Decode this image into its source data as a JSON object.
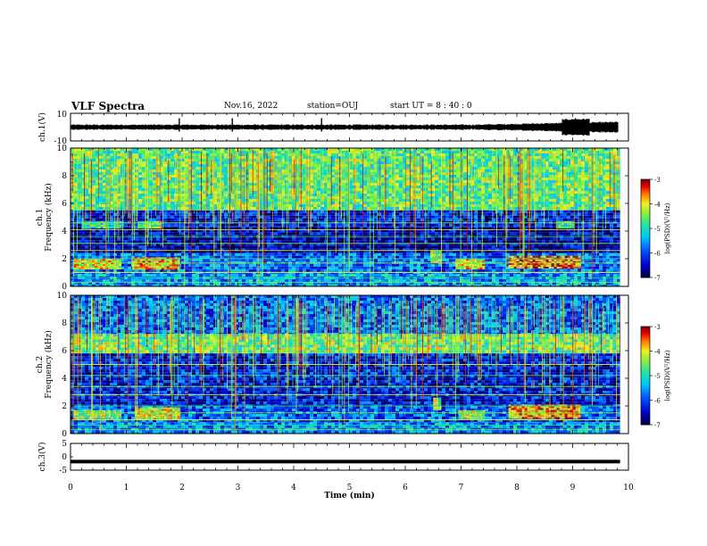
{
  "header": {
    "title": "VLF Spectra",
    "date": "Nov.16, 2022",
    "station": "station=OUJ",
    "start": "start  UT =  8 : 40 : 0"
  },
  "chart_data": [
    {
      "type": "line",
      "ylabel": "ch.1(V)",
      "ylim": [
        -10,
        10
      ],
      "y_ticks": [
        "10",
        "-10"
      ],
      "xlim": [
        0,
        10
      ],
      "description_values": {
        "baseline": 0,
        "spikes_x": [
          1.95,
          2.9,
          4.5,
          9.05
        ]
      }
    },
    {
      "type": "heatmap",
      "ylabel": "Frequency (kHz)",
      "ylabel_prefix": "ch.1",
      "ylim": [
        0,
        10
      ],
      "y_ticks": [
        "0",
        "2",
        "4",
        "6",
        "8",
        "10"
      ],
      "xlim": [
        0,
        10
      ],
      "colorbar": {
        "label": "log(PSD)(V²/Hz)",
        "ticks": [
          "-3",
          "-4",
          "-5",
          "-6",
          "-7"
        ],
        "range": [
          -7,
          -3
        ]
      },
      "bands": [
        {
          "x0": 0,
          "x1": 9.85,
          "f0": 5.5,
          "f1": 10,
          "level": -4.6
        },
        {
          "x0": 0,
          "x1": 9.85,
          "f0": 4.3,
          "f1": 5.5,
          "level": -6.3
        },
        {
          "x0": 0,
          "x1": 9.85,
          "f0": 2.4,
          "f1": 4.3,
          "level": -6.6
        },
        {
          "x0": 0,
          "x1": 9.85,
          "f0": 0.9,
          "f1": 2.4,
          "level": -5.8
        },
        {
          "x0": 0,
          "x1": 9.85,
          "f0": 0,
          "f1": 0.9,
          "level": -5.5
        }
      ],
      "emissions": [
        {
          "x0": 0.05,
          "x1": 0.9,
          "f0": 1.3,
          "f1": 2.0,
          "level": -4.0
        },
        {
          "x0": 1.1,
          "x1": 1.95,
          "f0": 1.3,
          "f1": 2.1,
          "level": -3.8
        },
        {
          "x0": 6.9,
          "x1": 7.4,
          "f0": 1.3,
          "f1": 2.0,
          "level": -4.0
        },
        {
          "x0": 7.85,
          "x1": 9.1,
          "f0": 1.3,
          "f1": 2.2,
          "level": -3.6
        },
        {
          "x0": 0.2,
          "x1": 0.9,
          "f0": 4.3,
          "f1": 4.7,
          "level": -4.8
        },
        {
          "x0": 1.2,
          "x1": 1.6,
          "f0": 4.3,
          "f1": 4.7,
          "level": -4.6
        },
        {
          "x0": 6.45,
          "x1": 6.6,
          "f0": 1.8,
          "f1": 2.6,
          "level": -4.3
        },
        {
          "x0": 8.7,
          "x1": 9.0,
          "f0": 4.3,
          "f1": 4.7,
          "level": -4.7
        }
      ],
      "lines_khz": [
        0.3,
        0.6,
        1.0,
        1.7,
        2.0,
        2.6,
        3.1,
        3.6,
        4.1,
        4.6
      ]
    },
    {
      "type": "heatmap",
      "ylabel": "Frequency (kHz)",
      "ylabel_prefix": "ch.2",
      "ylim": [
        0,
        10
      ],
      "y_ticks": [
        "0",
        "2",
        "4",
        "6",
        "8",
        "10"
      ],
      "xlim": [
        0,
        10
      ],
      "colorbar": {
        "label": "log(PSD)(V²/Hz)",
        "ticks": [
          "-3",
          "-4",
          "-5",
          "-6",
          "-7"
        ],
        "range": [
          -7,
          -3
        ]
      },
      "bands": [
        {
          "x0": 0,
          "x1": 9.85,
          "f0": 7.2,
          "f1": 10,
          "level": -5.8
        },
        {
          "x0": 0,
          "x1": 9.85,
          "f0": 5.8,
          "f1": 7.2,
          "level": -4.5
        },
        {
          "x0": 0,
          "x1": 9.85,
          "f0": 2.0,
          "f1": 5.8,
          "level": -6.3
        },
        {
          "x0": 0,
          "x1": 9.85,
          "f0": 0.8,
          "f1": 2.0,
          "level": -5.9
        },
        {
          "x0": 0,
          "x1": 9.85,
          "f0": 0,
          "f1": 0.8,
          "level": -5.6
        }
      ],
      "emissions": [
        {
          "x0": 0.05,
          "x1": 0.9,
          "f0": 1.1,
          "f1": 1.7,
          "level": -4.4
        },
        {
          "x0": 1.15,
          "x1": 1.95,
          "f0": 1.1,
          "f1": 1.9,
          "level": -4.1
        },
        {
          "x0": 6.95,
          "x1": 7.4,
          "f0": 1.1,
          "f1": 1.7,
          "level": -4.3
        },
        {
          "x0": 7.85,
          "x1": 9.1,
          "f0": 1.1,
          "f1": 2.1,
          "level": -3.7
        },
        {
          "x0": 6.5,
          "x1": 6.6,
          "f0": 1.8,
          "f1": 2.6,
          "level": -4.4
        }
      ],
      "lines_khz": [
        0.3,
        0.6,
        1.0,
        1.5,
        2.0,
        2.8,
        3.4,
        4.2,
        5.0
      ]
    },
    {
      "type": "line",
      "ylabel": "ch.3(V)",
      "ylim": [
        -5,
        5
      ],
      "y_ticks": [
        "5",
        "0",
        "-5"
      ],
      "xlim": [
        0,
        10
      ],
      "values": {
        "level": -1.8
      },
      "xlabel": "Time (min)",
      "x_ticks": [
        "0",
        "1",
        "2",
        "3",
        "4",
        "5",
        "6",
        "7",
        "8",
        "9",
        "10"
      ]
    }
  ]
}
